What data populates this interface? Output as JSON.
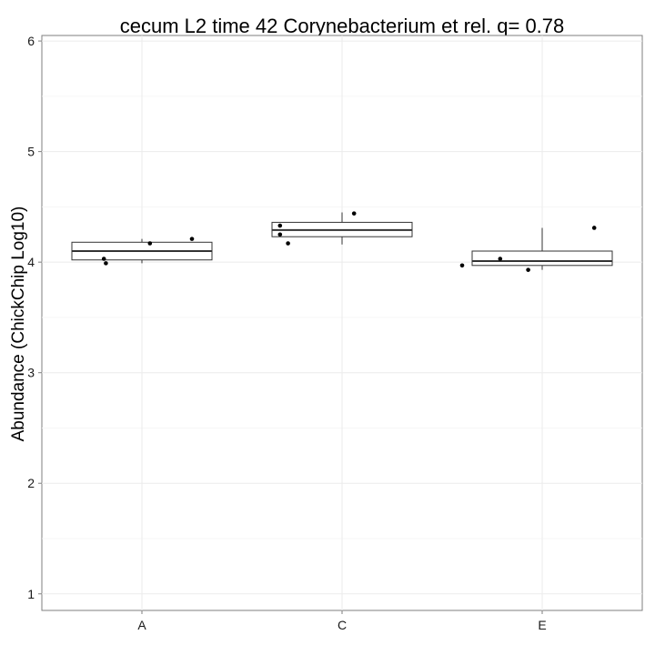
{
  "chart_data": {
    "type": "box",
    "title": "cecum L2 time 42 Corynebacterium et rel. q= 0.78",
    "xlabel": "",
    "ylabel": "Abundance (ChickChip Log10)",
    "ylim": [
      0.85,
      6.05
    ],
    "yticks": [
      1,
      2,
      3,
      4,
      5,
      6
    ],
    "grid": true,
    "categories": [
      "A",
      "C",
      "E"
    ],
    "boxes": [
      {
        "category": "A",
        "whisker_low": 3.99,
        "q1": 4.02,
        "median": 4.1,
        "q3": 4.18,
        "whisker_high": 4.21
      },
      {
        "category": "C",
        "whisker_low": 4.16,
        "q1": 4.23,
        "median": 4.29,
        "q3": 4.36,
        "whisker_high": 4.45
      },
      {
        "category": "E",
        "whisker_low": 3.93,
        "q1": 3.97,
        "median": 4.01,
        "q3": 4.1,
        "whisker_high": 4.31
      }
    ],
    "points": [
      {
        "category": "A",
        "jitter": -0.19,
        "y": 4.03
      },
      {
        "category": "A",
        "jitter": -0.18,
        "y": 3.99
      },
      {
        "category": "A",
        "jitter": 0.04,
        "y": 4.17
      },
      {
        "category": "A",
        "jitter": 0.25,
        "y": 4.21
      },
      {
        "category": "C",
        "jitter": -0.31,
        "y": 4.33
      },
      {
        "category": "C",
        "jitter": -0.31,
        "y": 4.25
      },
      {
        "category": "C",
        "jitter": -0.27,
        "y": 4.17
      },
      {
        "category": "C",
        "jitter": 0.06,
        "y": 4.44
      },
      {
        "category": "E",
        "jitter": -0.4,
        "y": 3.97
      },
      {
        "category": "E",
        "jitter": -0.21,
        "y": 4.03
      },
      {
        "category": "E",
        "jitter": -0.07,
        "y": 3.93
      },
      {
        "category": "E",
        "jitter": 0.26,
        "y": 4.31
      }
    ]
  }
}
